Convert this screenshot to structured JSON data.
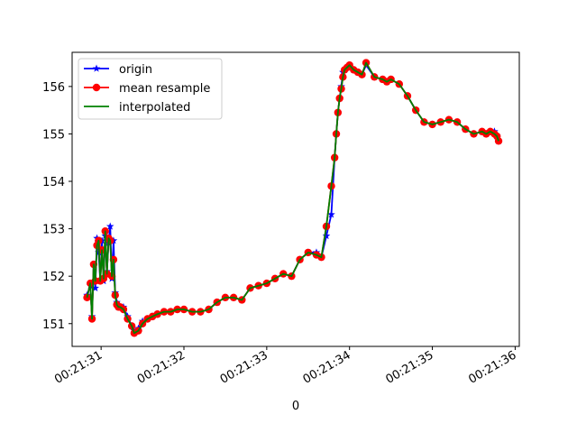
{
  "chart_data": {
    "type": "line",
    "title": "",
    "xlabel": "0",
    "ylabel": "",
    "grid": false,
    "legend_position": "upper-left",
    "x_unit": "seconds after 00:21:31",
    "xlim": [
      -0.35,
      5.05
    ],
    "ylim": [
      150.52,
      156.72
    ],
    "x_ticks": [
      {
        "value": 0,
        "label": "00:21:31"
      },
      {
        "value": 1,
        "label": "00:21:32"
      },
      {
        "value": 2,
        "label": "00:21:33"
      },
      {
        "value": 3,
        "label": "00:21:34"
      },
      {
        "value": 4,
        "label": "00:21:35"
      },
      {
        "value": 5,
        "label": "00:21:36"
      }
    ],
    "y_ticks": [
      {
        "value": 151,
        "label": "151"
      },
      {
        "value": 152,
        "label": "152"
      },
      {
        "value": 153,
        "label": "153"
      },
      {
        "value": 154,
        "label": "154"
      },
      {
        "value": 155,
        "label": "155"
      },
      {
        "value": 156,
        "label": "156"
      }
    ],
    "series": [
      {
        "name": "origin",
        "color": "#0000ff",
        "marker": "star",
        "line": true,
        "x": [
          -0.17,
          -0.13,
          -0.11,
          -0.09,
          -0.07,
          -0.05,
          -0.03,
          -0.01,
          0.01,
          0.03,
          0.05,
          0.07,
          0.09,
          0.11,
          0.13,
          0.15,
          0.17,
          0.19,
          0.21,
          0.23,
          0.27,
          0.32,
          0.37,
          0.4,
          0.45,
          0.5,
          0.56,
          0.62,
          0.68,
          0.76,
          0.84,
          0.92,
          1.0,
          1.1,
          1.2,
          1.3,
          1.4,
          1.5,
          1.6,
          1.7,
          1.8,
          1.9,
          2.0,
          2.1,
          2.2,
          2.3,
          2.4,
          2.5,
          2.6,
          2.66,
          2.72,
          2.78,
          2.82,
          2.84,
          2.86,
          2.88,
          2.9,
          2.92,
          2.94,
          2.97,
          3.0,
          3.05,
          3.1,
          3.15,
          3.2,
          3.3,
          3.4,
          3.45,
          3.5,
          3.6,
          3.7,
          3.8,
          3.9,
          4.0,
          4.1,
          4.2,
          4.3,
          4.4,
          4.5,
          4.6,
          4.65,
          4.7,
          4.75,
          4.78,
          4.8
        ],
        "y": [
          151.6,
          151.8,
          151.15,
          152.25,
          151.75,
          152.8,
          152.5,
          151.9,
          152.75,
          151.9,
          152.85,
          152.1,
          152.7,
          153.05,
          151.95,
          152.75,
          151.65,
          151.45,
          151.35,
          151.35,
          151.35,
          151.15,
          150.95,
          150.85,
          150.9,
          151.05,
          151.1,
          151.15,
          151.2,
          151.25,
          151.25,
          151.3,
          151.3,
          151.25,
          151.25,
          151.3,
          151.45,
          151.55,
          151.55,
          151.5,
          151.75,
          151.8,
          151.85,
          151.95,
          152.05,
          152.0,
          152.35,
          152.5,
          152.5,
          152.4,
          152.85,
          153.3,
          154.5,
          155.0,
          155.45,
          155.75,
          156.0,
          156.3,
          156.35,
          156.4,
          156.45,
          156.35,
          156.3,
          156.25,
          156.45,
          156.2,
          156.15,
          156.1,
          156.15,
          156.05,
          155.8,
          155.5,
          155.25,
          155.2,
          155.25,
          155.3,
          155.25,
          155.1,
          155.0,
          155.05,
          155.0,
          155.05,
          155.05,
          154.95,
          154.85
        ]
      },
      {
        "name": "mean resample",
        "color": "#ff0000",
        "marker": "circle",
        "line": true,
        "x": [
          -0.17,
          -0.13,
          -0.11,
          -0.09,
          -0.07,
          -0.05,
          -0.03,
          -0.01,
          0.01,
          0.03,
          0.05,
          0.07,
          0.09,
          0.11,
          0.13,
          0.15,
          0.17,
          0.19,
          0.21,
          0.23,
          0.27,
          0.32,
          0.37,
          0.4,
          0.45,
          0.5,
          0.56,
          0.62,
          0.68,
          0.76,
          0.84,
          0.92,
          1.0,
          1.1,
          1.2,
          1.3,
          1.4,
          1.5,
          1.6,
          1.7,
          1.8,
          1.9,
          2.0,
          2.1,
          2.2,
          2.3,
          2.4,
          2.5,
          2.6,
          2.66,
          2.72,
          2.78,
          2.82,
          2.84,
          2.86,
          2.88,
          2.9,
          2.92,
          2.94,
          2.97,
          3.0,
          3.05,
          3.1,
          3.15,
          3.2,
          3.3,
          3.4,
          3.45,
          3.5,
          3.6,
          3.7,
          3.8,
          3.9,
          4.0,
          4.1,
          4.2,
          4.3,
          4.4,
          4.5,
          4.6,
          4.65,
          4.7,
          4.75,
          4.78,
          4.8
        ],
        "y": [
          151.55,
          151.85,
          151.1,
          152.25,
          151.9,
          152.65,
          152.75,
          151.9,
          152.55,
          151.95,
          152.95,
          152.05,
          152.8,
          152.75,
          152.0,
          152.35,
          151.6,
          151.4,
          151.35,
          151.35,
          151.3,
          151.1,
          150.95,
          150.8,
          150.85,
          151.0,
          151.1,
          151.15,
          151.2,
          151.25,
          151.25,
          151.3,
          151.3,
          151.25,
          151.25,
          151.3,
          151.45,
          151.55,
          151.55,
          151.5,
          151.75,
          151.8,
          151.85,
          151.95,
          152.05,
          152.0,
          152.35,
          152.5,
          152.45,
          152.4,
          153.05,
          153.9,
          154.5,
          155.0,
          155.45,
          155.75,
          155.95,
          156.2,
          156.35,
          156.4,
          156.45,
          156.35,
          156.3,
          156.25,
          156.5,
          156.2,
          156.15,
          156.1,
          156.15,
          156.05,
          155.8,
          155.5,
          155.25,
          155.2,
          155.25,
          155.3,
          155.25,
          155.1,
          155.0,
          155.05,
          155.0,
          155.05,
          155.0,
          154.95,
          154.85
        ]
      },
      {
        "name": "interpolated",
        "color": "#008000",
        "marker": "none",
        "line": true,
        "x": [
          -0.17,
          -0.13,
          -0.11,
          -0.09,
          -0.07,
          -0.05,
          -0.03,
          -0.01,
          0.01,
          0.03,
          0.05,
          0.07,
          0.09,
          0.11,
          0.13,
          0.15,
          0.17,
          0.19,
          0.21,
          0.23,
          0.27,
          0.32,
          0.37,
          0.4,
          0.45,
          0.5,
          0.56,
          0.62,
          0.68,
          0.76,
          0.84,
          0.92,
          1.0,
          1.1,
          1.2,
          1.3,
          1.4,
          1.5,
          1.6,
          1.7,
          1.8,
          1.9,
          2.0,
          2.1,
          2.2,
          2.3,
          2.4,
          2.5,
          2.6,
          2.66,
          2.72,
          2.78,
          2.82,
          2.84,
          2.86,
          2.88,
          2.9,
          2.92,
          2.94,
          2.97,
          3.0,
          3.05,
          3.1,
          3.15,
          3.2,
          3.3,
          3.4,
          3.45,
          3.5,
          3.6,
          3.7,
          3.8,
          3.9,
          4.0,
          4.1,
          4.2,
          4.3,
          4.4,
          4.5,
          4.6,
          4.65,
          4.7,
          4.75,
          4.78,
          4.8
        ],
        "y": [
          151.55,
          151.85,
          151.1,
          152.25,
          151.9,
          152.65,
          152.75,
          151.9,
          152.55,
          151.95,
          152.95,
          152.05,
          152.8,
          152.75,
          152.0,
          152.35,
          151.6,
          151.4,
          151.35,
          151.35,
          151.3,
          151.1,
          150.95,
          150.8,
          150.85,
          151.0,
          151.1,
          151.15,
          151.2,
          151.25,
          151.25,
          151.3,
          151.3,
          151.25,
          151.25,
          151.3,
          151.45,
          151.55,
          151.55,
          151.5,
          151.75,
          151.8,
          151.85,
          151.95,
          152.05,
          152.0,
          152.35,
          152.5,
          152.45,
          152.4,
          153.05,
          153.9,
          154.5,
          155.0,
          155.45,
          155.75,
          155.95,
          156.2,
          156.35,
          156.4,
          156.45,
          156.35,
          156.3,
          156.25,
          156.5,
          156.2,
          156.15,
          156.1,
          156.15,
          156.05,
          155.8,
          155.5,
          155.25,
          155.2,
          155.25,
          155.3,
          155.25,
          155.1,
          155.0,
          155.05,
          155.0,
          155.05,
          155.0,
          154.95,
          154.85
        ]
      }
    ]
  }
}
